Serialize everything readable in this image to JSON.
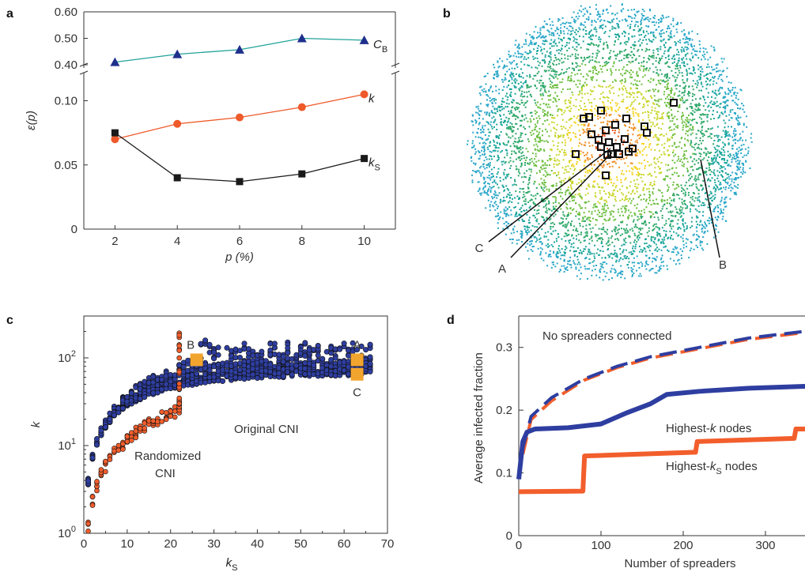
{
  "colors": {
    "cb": "#21a39a",
    "cb_marker": "#1f2f8c",
    "k": "#ee5a2a",
    "ks": "#1a1a1a",
    "blue": "#2e3ea0",
    "orange": "#f25e2c",
    "highlight": "#f2a52e",
    "axis": "#333333"
  },
  "panels": {
    "a": {
      "letter": "a"
    },
    "b": {
      "letter": "b",
      "labels": {
        "A": "A",
        "B": "B",
        "C": "C"
      }
    },
    "c": {
      "letter": "c",
      "highlight_labels": {
        "A": "A",
        "B": "B",
        "C": "C"
      },
      "annotations": {
        "original": "Original CNI",
        "randomized_1": "Randomized",
        "randomized_2": "CNI"
      }
    },
    "d": {
      "letter": "d",
      "annotation_top": "No spreaders connected"
    }
  },
  "chart_data": [
    {
      "type": "line",
      "panel": "a",
      "xlabel": "p (%)",
      "ylabel": "ε(p)",
      "x": [
        2,
        4,
        6,
        8,
        10
      ],
      "xlim": [
        1,
        11
      ],
      "xticks": [
        "2",
        "4",
        "6",
        "8",
        "10"
      ],
      "ylim_lower": [
        0,
        0.12
      ],
      "yticks_lower": [
        "0",
        "0.05",
        "0.10"
      ],
      "ylim_upper": [
        0.4,
        0.6
      ],
      "yticks_upper": [
        "0.40",
        "0.50",
        "0.60"
      ],
      "axis_break": true,
      "series": [
        {
          "name": "C",
          "name_sub": "B",
          "values": [
            0.41,
            0.44,
            0.457,
            0.5,
            0.493
          ]
        },
        {
          "name": "k",
          "name_sub": "",
          "values": [
            0.07,
            0.082,
            0.087,
            0.095,
            0.105
          ]
        },
        {
          "name": "k",
          "name_sub": "S",
          "values": [
            0.075,
            0.04,
            0.037,
            0.043,
            0.055
          ]
        }
      ]
    },
    {
      "type": "scatter",
      "panel": "c",
      "xlabel": "k",
      "xlabel_sub": "S",
      "ylabel": "k",
      "xlim": [
        0,
        70
      ],
      "xticks": [
        "0",
        "10",
        "20",
        "30",
        "40",
        "50",
        "60",
        "70"
      ],
      "yscale": "log",
      "ylim": [
        1,
        300
      ],
      "yticks": [
        "10",
        "10",
        "10"
      ],
      "yticks_exp": [
        "0",
        "1",
        "2"
      ],
      "series": [
        {
          "name": "Original CNI",
          "rule": "k between max(ks, 3ks-30) and upper envelope, shell ks = 1..66"
        },
        {
          "name": "Randomized CNI",
          "rule": "k roughly equal to ks, ks = 1..22"
        }
      ],
      "highlight_points": [
        {
          "label": "A",
          "x": 63,
          "y": 95
        },
        {
          "label": "B",
          "x": 26,
          "y": 95
        },
        {
          "label": "C",
          "x": 63,
          "y": 65
        }
      ]
    },
    {
      "type": "line",
      "panel": "d",
      "xlabel": "Number of spreaders",
      "ylabel": "Average infected fraction",
      "xlim": [
        0,
        350
      ],
      "xticks": [
        "0",
        "100",
        "200",
        "300"
      ],
      "ylim": [
        0,
        0.35
      ],
      "yticks": [
        "0",
        "0.1",
        "0.2",
        "0.3"
      ],
      "series": [
        {
          "name": "Highest-k nodes",
          "style": "solid",
          "points": [
            [
              0,
              0.09
            ],
            [
              5,
              0.15
            ],
            [
              10,
              0.165
            ],
            [
              20,
              0.17
            ],
            [
              60,
              0.172
            ],
            [
              100,
              0.178
            ],
            [
              130,
              0.195
            ],
            [
              160,
              0.21
            ],
            [
              180,
              0.225
            ],
            [
              220,
              0.23
            ],
            [
              280,
              0.235
            ],
            [
              350,
              0.238
            ]
          ]
        },
        {
          "name": "Highest-ks nodes",
          "style": "solid",
          "points": [
            [
              0,
              0.07
            ],
            [
              78,
              0.071
            ],
            [
              80,
              0.127
            ],
            [
              215,
              0.133
            ],
            [
              217,
              0.15
            ],
            [
              335,
              0.155
            ],
            [
              337,
              0.17
            ],
            [
              350,
              0.17
            ]
          ]
        },
        {
          "name": "No spreaders connected (highest-k)",
          "style": "dashed",
          "points": [
            [
              5,
              0.14
            ],
            [
              15,
              0.19
            ],
            [
              40,
              0.22
            ],
            [
              80,
              0.25
            ],
            [
              120,
              0.27
            ],
            [
              160,
              0.285
            ],
            [
              220,
              0.3
            ],
            [
              280,
              0.315
            ],
            [
              350,
              0.326
            ]
          ]
        },
        {
          "name": "No spreaders connected (highest-ks)",
          "style": "dashed",
          "points": [
            [
              5,
              0.13
            ],
            [
              15,
              0.185
            ],
            [
              40,
              0.215
            ],
            [
              80,
              0.248
            ],
            [
              120,
              0.268
            ],
            [
              160,
              0.283
            ],
            [
              220,
              0.298
            ],
            [
              280,
              0.313
            ],
            [
              350,
              0.324
            ]
          ]
        }
      ],
      "legend_labels": {
        "k": "Highest-",
        "k_italic": "k",
        "k_rest": " nodes",
        "ks": "Highest-",
        "ks_italic": "k",
        "ks_sub": "S",
        "ks_rest": " nodes"
      }
    }
  ]
}
